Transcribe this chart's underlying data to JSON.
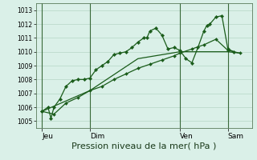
{
  "bg_color": "#daf0e8",
  "grid_color": "#c0ddd0",
  "line_color": "#1a5c1a",
  "xlabel": "Pression niveau de la mer( hPa )",
  "xlabel_fontsize": 8,
  "ylim": [
    1004.5,
    1013.5
  ],
  "yticks": [
    1005,
    1006,
    1007,
    1008,
    1009,
    1010,
    1011,
    1012,
    1013
  ],
  "xlim": [
    0,
    36
  ],
  "xtick_labels": [
    "Jeu",
    "Dim",
    "Ven",
    "Sam"
  ],
  "xtick_positions": [
    1,
    9,
    24,
    32
  ],
  "vline_positions": [
    1,
    9,
    24,
    32
  ],
  "series1_x": [
    1,
    2,
    2.5,
    3,
    4,
    5,
    6,
    7,
    8,
    9,
    10,
    11,
    12,
    13,
    14,
    15,
    16,
    17,
    18,
    18.5,
    19,
    20,
    21,
    22,
    23,
    24,
    25,
    26,
    27,
    28,
    28.5,
    29,
    30,
    31,
    32,
    33
  ],
  "series1_y": [
    1005.7,
    1006.0,
    1005.2,
    1006.0,
    1006.6,
    1007.5,
    1007.9,
    1008.0,
    1008.0,
    1008.1,
    1008.7,
    1009.0,
    1009.3,
    1009.8,
    1009.9,
    1010.0,
    1010.3,
    1010.7,
    1011.0,
    1011.0,
    1011.5,
    1011.7,
    1011.2,
    1010.2,
    1010.3,
    1010.1,
    1009.5,
    1009.2,
    1010.3,
    1011.5,
    1011.9,
    1012.0,
    1012.5,
    1012.6,
    1010.2,
    1010.0
  ],
  "series2_x": [
    1,
    3,
    5,
    7,
    9,
    11,
    13,
    15,
    17,
    19,
    21,
    23,
    24,
    26,
    28,
    30,
    32,
    34
  ],
  "series2_y": [
    1005.7,
    1005.5,
    1006.3,
    1006.7,
    1007.2,
    1007.5,
    1008.0,
    1008.4,
    1008.8,
    1009.1,
    1009.4,
    1009.7,
    1009.9,
    1010.2,
    1010.5,
    1010.9,
    1010.1,
    1009.9
  ],
  "series3_x": [
    1,
    9,
    17,
    24,
    32,
    34
  ],
  "series3_y": [
    1005.7,
    1007.2,
    1009.5,
    1010.0,
    1010.0,
    1009.9
  ]
}
